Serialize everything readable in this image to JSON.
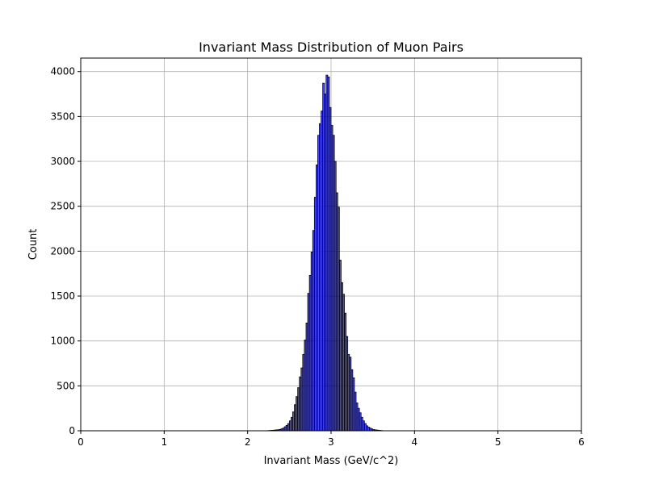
{
  "chart_data": {
    "type": "bar",
    "title": "Invariant Mass Distribution of Muon Pairs",
    "xlabel": "Invariant Mass (GeV/c^2)",
    "ylabel": "Count",
    "xlim": [
      0,
      6
    ],
    "ylim": [
      0,
      4150
    ],
    "xticks": [
      0,
      1,
      2,
      3,
      4,
      5,
      6
    ],
    "yticks": [
      0,
      500,
      1000,
      1500,
      2000,
      2500,
      3000,
      3500,
      4000
    ],
    "grid": true,
    "bar_color": "#0000ff",
    "bar_alpha": 0.7,
    "edge_color": "#000000",
    "bin_width": 0.02,
    "bin_left_edges": [
      2.24,
      2.26,
      2.28,
      2.3,
      2.32,
      2.34,
      2.36,
      2.38,
      2.4,
      2.42,
      2.44,
      2.46,
      2.48,
      2.5,
      2.52,
      2.54,
      2.56,
      2.58,
      2.6,
      2.62,
      2.64,
      2.66,
      2.68,
      2.7,
      2.72,
      2.74,
      2.76,
      2.78,
      2.8,
      2.82,
      2.84,
      2.86,
      2.88,
      2.9,
      2.92,
      2.94,
      2.96,
      2.98,
      3.0,
      3.02,
      3.04,
      3.06,
      3.08,
      3.1,
      3.12,
      3.14,
      3.16,
      3.18,
      3.2,
      3.22,
      3.24,
      3.26,
      3.28,
      3.3,
      3.32,
      3.34,
      3.36,
      3.38,
      3.4,
      3.42,
      3.44,
      3.46,
      3.48,
      3.5,
      3.52,
      3.54,
      3.56,
      3.58,
      3.6
    ],
    "counts": [
      2,
      3,
      5,
      6,
      8,
      10,
      12,
      15,
      22,
      30,
      45,
      60,
      80,
      110,
      150,
      210,
      290,
      380,
      480,
      600,
      700,
      850,
      1010,
      1200,
      1530,
      1730,
      1990,
      2230,
      2600,
      2960,
      3290,
      3420,
      3560,
      3870,
      3750,
      3960,
      3940,
      3600,
      3400,
      3290,
      3000,
      2650,
      2490,
      1900,
      1650,
      1520,
      1310,
      1050,
      850,
      820,
      680,
      590,
      430,
      310,
      250,
      200,
      150,
      110,
      80,
      55,
      40,
      30,
      20,
      14,
      10,
      8,
      6,
      4,
      2
    ]
  }
}
